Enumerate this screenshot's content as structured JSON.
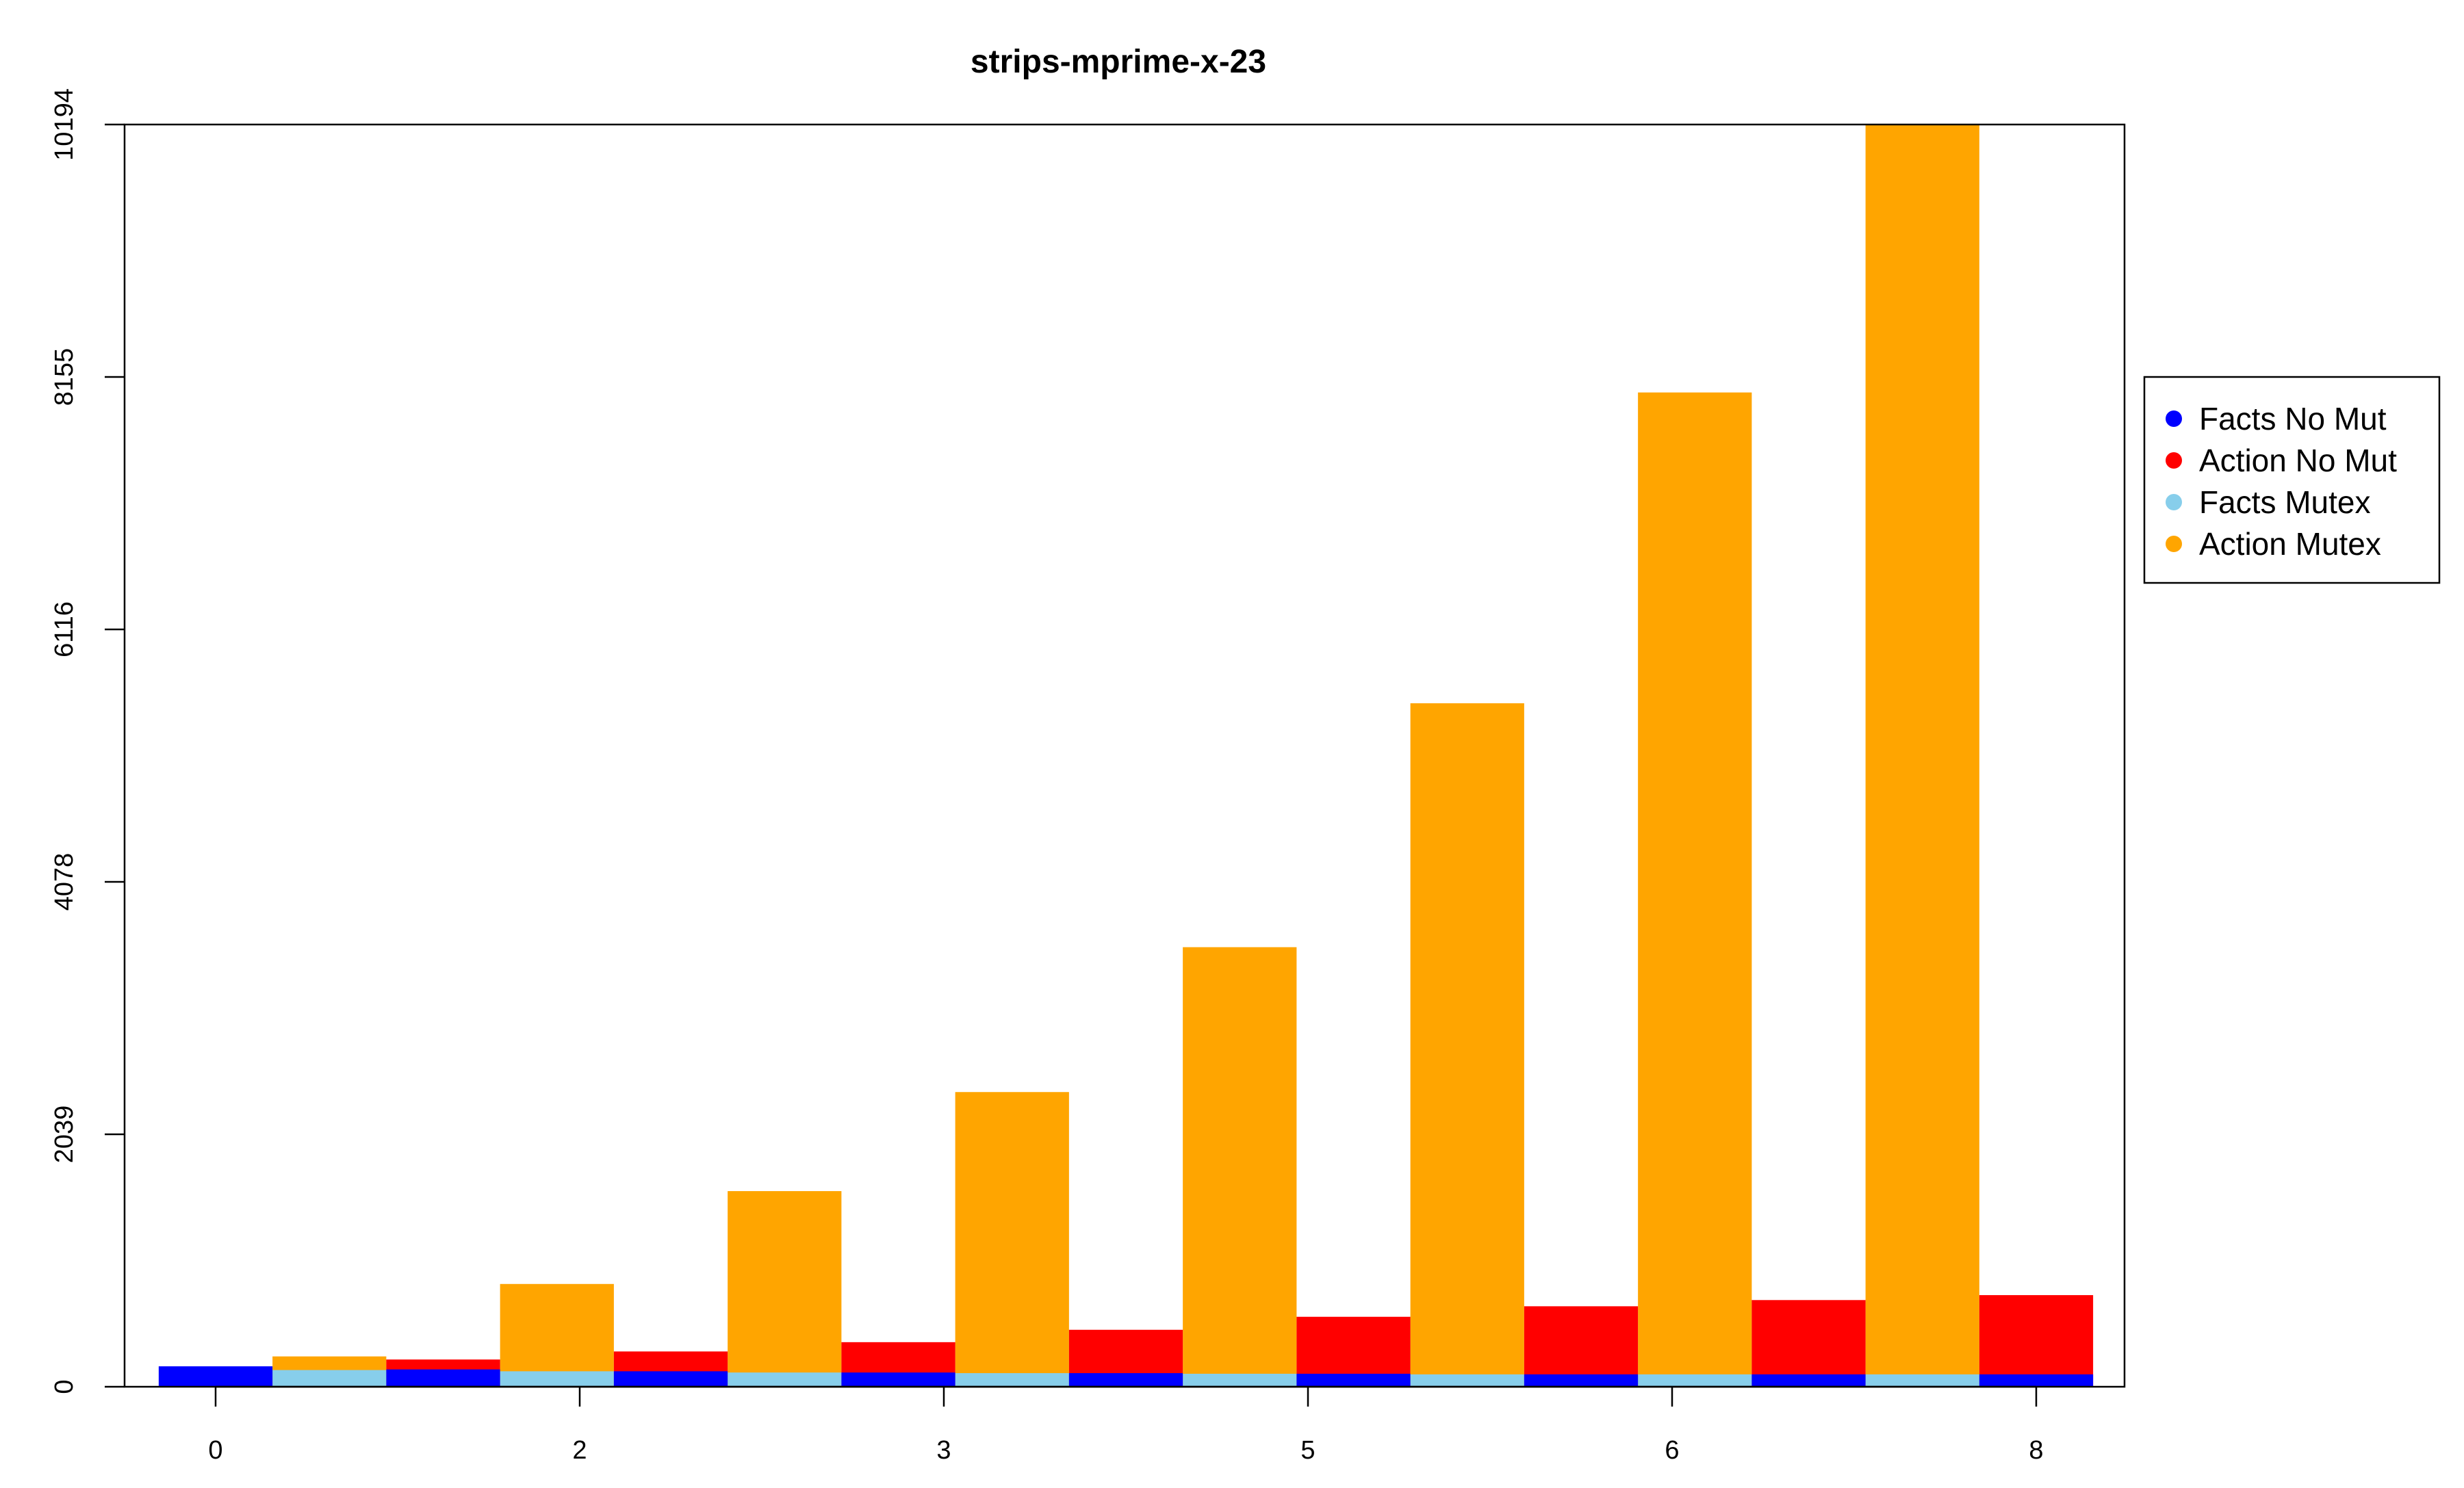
{
  "chart_data": {
    "type": "bar",
    "title": "strips-mprime-x-23",
    "xlabel": "",
    "ylabel": "",
    "ylim": [
      0,
      10194
    ],
    "yticks": [
      "0",
      "2039",
      "4078",
      "6116",
      "8155",
      "10194"
    ],
    "xticks": [
      "0",
      "2",
      "3",
      "5",
      "6",
      "8"
    ],
    "xlim": [
      0,
      8
    ],
    "series": [
      {
        "name": "Facts No Mut",
        "color": "#0000ff",
        "x": [
          0,
          1,
          2,
          3,
          4,
          5,
          6,
          7,
          8
        ],
        "values": [
          165,
          140,
          125,
          115,
          110,
          105,
          100,
          100,
          100
        ]
      },
      {
        "name": "Action No Mut",
        "color": "#ff0000",
        "x": [
          1,
          2,
          3,
          4,
          5,
          6,
          7,
          8
        ],
        "values": [
          220,
          285,
          360,
          460,
          565,
          650,
          700,
          740
        ]
      },
      {
        "name": "Facts Mutex",
        "color": "#87ceeb",
        "x": [
          0.5,
          1.5,
          2.5,
          3.5,
          4.5,
          5.5,
          6.5,
          7.5
        ],
        "values": [
          135,
          125,
          115,
          110,
          105,
          100,
          100,
          100
        ]
      },
      {
        "name": "Action Mutex",
        "color": "#ffa500",
        "x": [
          0.5,
          1.5,
          2.5,
          3.5,
          4.5,
          5.5,
          6.5,
          7.5
        ],
        "values": [
          245,
          830,
          1580,
          2380,
          3550,
          5520,
          8030,
          10194
        ]
      }
    ],
    "legend": {
      "position": "right",
      "entries": [
        "Facts No Mut",
        "Action No Mut",
        "Facts Mutex",
        "Action Mutex"
      ]
    },
    "grid": false
  }
}
